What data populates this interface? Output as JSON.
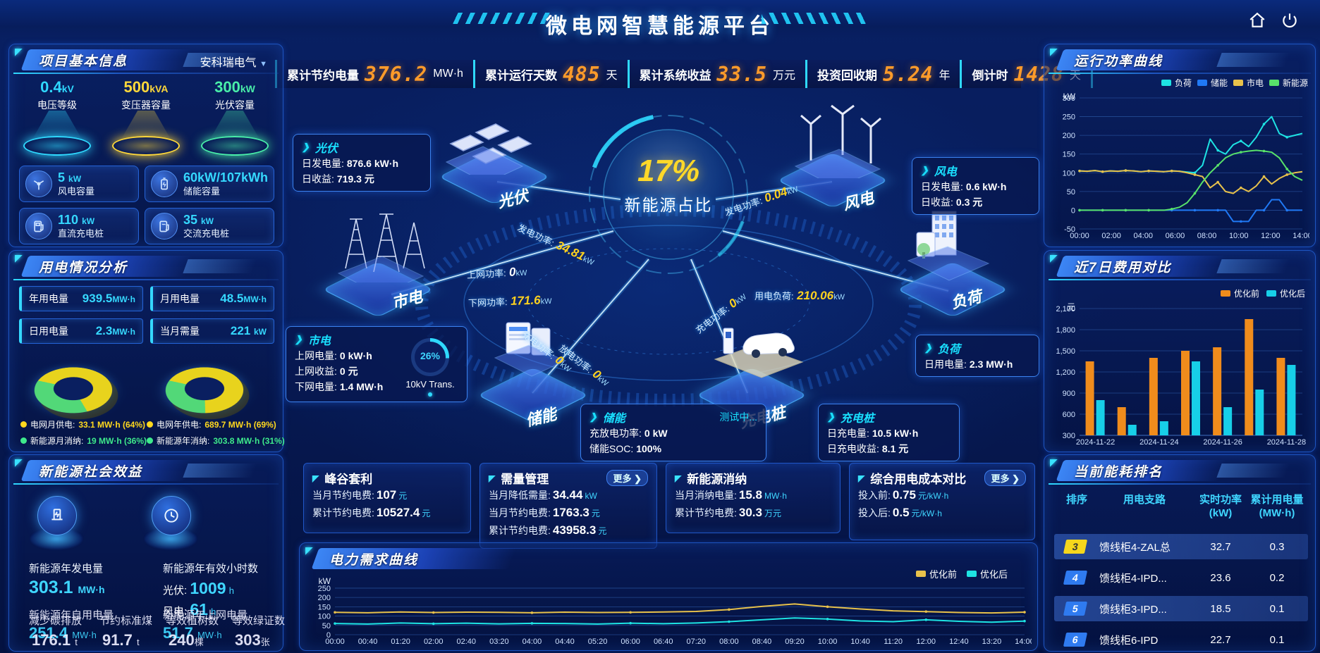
{
  "header": {
    "title": "微电网智慧能源平台"
  },
  "kpis": [
    {
      "label": "累计节约电量",
      "value": "376.2",
      "unit": "MW·h"
    },
    {
      "label": "累计运行天数",
      "value": "485",
      "unit": "天"
    },
    {
      "label": "累计系统收益",
      "value": "33.5",
      "unit": "万元"
    },
    {
      "label": "投资回收期",
      "value": "5.24",
      "unit": "年"
    },
    {
      "label": "倒计时",
      "value": "1428",
      "unit": "天"
    }
  ],
  "project": {
    "title": "项目基本信息",
    "company": "安科瑞电气",
    "cones": [
      {
        "value": "0.4",
        "unit": "kV",
        "label": "电压等级",
        "color": "#2fd9ff"
      },
      {
        "value": "500",
        "unit": "kVA",
        "label": "变压器容量",
        "color": "#ffd83a"
      },
      {
        "value": "300",
        "unit": "kW",
        "label": "光伏容量",
        "color": "#49eea9"
      }
    ],
    "cards": [
      {
        "value": "5",
        "unit": "kW",
        "label": "风电容量",
        "icon": "wind-turbine-icon"
      },
      {
        "value": "60kW/107kWh",
        "unit": "",
        "label": "储能容量",
        "icon": "battery-icon"
      },
      {
        "value": "110",
        "unit": "kW",
        "label": "直流充电桩",
        "icon": "dc-charger-icon"
      },
      {
        "value": "35",
        "unit": "kW",
        "label": "交流充电桩",
        "icon": "ac-charger-icon"
      }
    ]
  },
  "usage": {
    "title": "用电情况分析",
    "stats": [
      {
        "label": "年用电量",
        "value": "939.5",
        "unit": "MW·h"
      },
      {
        "label": "月用电量",
        "value": "48.5",
        "unit": "MW·h"
      },
      {
        "label": "日用电量",
        "value": "2.3",
        "unit": "MW·h"
      },
      {
        "label": "当月需量",
        "value": "221",
        "unit": "kW"
      }
    ],
    "month_legend": [
      {
        "label": "电网月供电:",
        "value": "33.1 MW·h (64%)",
        "color": "#ffd81e"
      },
      {
        "label": "新能源月消纳:",
        "value": "19 MW·h (36%)",
        "color": "#3ee98c"
      }
    ],
    "year_legend": [
      {
        "label": "电网年供电:",
        "value": "689.7 MW·h (69%)",
        "color": "#ffd81e"
      },
      {
        "label": "新能源年消纳:",
        "value": "303.8 MW·h (31%)",
        "color": "#3ee98c"
      }
    ]
  },
  "benefit": {
    "title": "新能源社会效益",
    "gen": {
      "label": "新能源年发电量",
      "value": "303.1",
      "unit": "MW·h"
    },
    "hours": {
      "label": "新能源年有效小时数",
      "sub": [
        {
          "k": "光伏:",
          "v": "1009",
          "u": "h"
        },
        {
          "k": "风电:",
          "v": "61",
          "u": "h"
        }
      ]
    },
    "overlap_a": [
      {
        "label": "新能源年自用电量",
        "value": "251.4",
        "unit": "MW·h"
      },
      {
        "label": "新能源年上网电量",
        "value": "51.7",
        "unit": "MW·h"
      }
    ],
    "overlap_b": [
      {
        "label": "减少碳排放",
        "value": "176.1",
        "unit": "t"
      },
      {
        "label": "节约标准煤",
        "value": "91.7",
        "unit": "t"
      },
      {
        "label": "等效植树数",
        "value": "240",
        "unit": "棵"
      },
      {
        "label": "等效绿证数",
        "value": "303",
        "unit": "张"
      }
    ]
  },
  "diagram": {
    "center": {
      "value": "17%",
      "label": "新能源占比"
    },
    "nodes": {
      "pv": "光伏",
      "grid": "市电",
      "wind": "风电",
      "load": "负荷",
      "storage": "储能",
      "charger": "充电桩"
    },
    "pv_box": {
      "title": "光伏",
      "rows": [
        {
          "k": "日发电量:",
          "v": "876.6 kW·h"
        },
        {
          "k": "日收益:",
          "v": "719.3 元"
        }
      ]
    },
    "wind_box": {
      "title": "风电",
      "rows": [
        {
          "k": "日发电量:",
          "v": "0.6 kW·h"
        },
        {
          "k": "日收益:",
          "v": "0.3 元"
        }
      ]
    },
    "grid_box": {
      "title": "市电",
      "rows": [
        {
          "k": "上网电量:",
          "v": "0 kW·h"
        },
        {
          "k": "上网收益:",
          "v": "0 元"
        },
        {
          "k": "下网电量:",
          "v": "1.4 MW·h"
        }
      ],
      "gauge_value": "26%",
      "gauge_label": "10kV Trans."
    },
    "storage_box": {
      "title": "储能",
      "status": "测试中...",
      "rows": [
        {
          "k": "充放电功率:",
          "v": "0 kW"
        },
        {
          "k": "储能SOC:",
          "v": "100%"
        }
      ]
    },
    "load_box": {
      "title": "负荷",
      "rows": [
        {
          "k": "日用电量:",
          "v": "2.3 MW·h"
        }
      ]
    },
    "charger_box": {
      "title": "充电桩",
      "rows": [
        {
          "k": "日充电量:",
          "v": "10.5 kW·h"
        },
        {
          "k": "日充电收益:",
          "v": "8.1 元"
        }
      ]
    },
    "flows": [
      {
        "label": "发电功率:",
        "value": "34.81",
        "unit": "kW"
      },
      {
        "label": "上网功率:",
        "value": "0",
        "unit": "kW"
      },
      {
        "label": "下网功率:",
        "value": "171.6",
        "unit": "kW"
      },
      {
        "label": "发电功率:",
        "value": "0.04",
        "unit": "kW"
      },
      {
        "label": "用电负荷:",
        "value": "210.06",
        "unit": "kW"
      },
      {
        "label": "充电功率:",
        "value": "0",
        "unit": "kW"
      },
      {
        "label": "放电功率:",
        "value": "0",
        "unit": "kW"
      },
      {
        "label": "充电功率:",
        "value": "0",
        "unit": "kW"
      }
    ]
  },
  "bottom_cards": {
    "arbitrage": {
      "title": "峰谷套利",
      "rows": [
        {
          "k": "当月节约电费:",
          "v": "107",
          "u": "元"
        },
        {
          "k": "累计节约电费:",
          "v": "10527.4",
          "u": "元"
        }
      ]
    },
    "demand": {
      "title": "需量管理",
      "more": "更多 ❯",
      "rows": [
        {
          "k": "当月降低需量:",
          "v": "34.44",
          "u": "kW"
        },
        {
          "k": "当月节约电费:",
          "v": "1763.3",
          "u": "元"
        },
        {
          "k": "累计节约电费:",
          "v": "43958.3",
          "u": "元"
        }
      ]
    },
    "consumption": {
      "title": "新能源消纳",
      "rows": [
        {
          "k": "当月消纳电量:",
          "v": "15.8",
          "u": "MW·h"
        },
        {
          "k": "累计节约电费:",
          "v": "30.3",
          "u": "万元"
        }
      ]
    },
    "cost": {
      "title": "综合用电成本对比",
      "more": "更多 ❯",
      "rows": [
        {
          "k": "投入前:",
          "v": "0.75",
          "u": "元/kW·h"
        },
        {
          "k": "投入后:",
          "v": "0.5",
          "u": "元/kW·h"
        }
      ]
    }
  },
  "panels": {
    "demand_curve": "电力需求曲线",
    "power_curve": "运行功率曲线",
    "cost7": "近7日费用对比"
  },
  "ranking": {
    "title": "当前能耗排名",
    "headers": [
      {
        "l1": "排序",
        "l2": ""
      },
      {
        "l1": "用电支路",
        "l2": ""
      },
      {
        "l1": "实时功率",
        "l2": "(kW)"
      },
      {
        "l1": "累计用电量",
        "l2": "(MW·h)"
      }
    ],
    "rows": [
      {
        "rank": "3",
        "name": "馈线柜4-ZAL总",
        "power": "32.7",
        "energy": "0.3"
      },
      {
        "rank": "4",
        "name": "馈线柜4-IPD...",
        "power": "23.6",
        "energy": "0.2"
      },
      {
        "rank": "5",
        "name": "馈线柜3-IPD...",
        "power": "18.5",
        "energy": "0.1"
      },
      {
        "rank": "6",
        "name": "馈线柜6-IPD",
        "power": "22.7",
        "energy": "0.1"
      }
    ]
  },
  "chart_data": [
    {
      "el": "rp-chart",
      "type": "line",
      "title": "运行功率曲线",
      "ylabel": "kW",
      "ylim": [
        -50,
        300
      ],
      "yticks": [
        -50,
        0,
        50,
        100,
        150,
        200,
        250,
        300
      ],
      "xticks": [
        "00:00",
        "02:00",
        "04:00",
        "06:00",
        "08:00",
        "10:00",
        "12:00",
        "14:00"
      ],
      "series": [
        {
          "name": "负荷",
          "color": "#1ee3e3",
          "values": [
            105,
            104,
            106,
            103,
            105,
            104,
            106,
            105,
            103,
            105,
            104,
            103,
            105,
            104,
            102,
            100,
            120,
            190,
            160,
            150,
            175,
            185,
            170,
            195,
            230,
            250,
            205,
            195,
            200,
            205
          ]
        },
        {
          "name": "储能",
          "color": "#2079f5",
          "values": [
            0,
            0,
            0,
            0,
            0,
            0,
            0,
            0,
            0,
            0,
            0,
            0,
            0,
            0,
            0,
            0,
            0,
            0,
            0,
            0,
            -30,
            -30,
            -30,
            0,
            0,
            28,
            28,
            0,
            0,
            0
          ]
        },
        {
          "name": "市电",
          "color": "#e7c14b",
          "values": [
            105,
            104,
            106,
            103,
            105,
            104,
            106,
            105,
            103,
            105,
            104,
            103,
            105,
            104,
            100,
            95,
            90,
            60,
            75,
            50,
            45,
            60,
            50,
            65,
            90,
            70,
            85,
            95,
            100,
            103
          ]
        },
        {
          "name": "新能源",
          "color": "#58e26a",
          "values": [
            0,
            0,
            0,
            0,
            0,
            0,
            0,
            0,
            0,
            0,
            0,
            0,
            3,
            8,
            20,
            45,
            75,
            100,
            120,
            140,
            150,
            155,
            158,
            160,
            158,
            155,
            140,
            110,
            90,
            80
          ]
        }
      ]
    },
    {
      "el": "c7-chart",
      "type": "bar",
      "title": "近7日费用对比",
      "ylabel": "元",
      "ylim": [
        300,
        2100
      ],
      "yticks": [
        300,
        600,
        900,
        1200,
        1500,
        1800,
        2100
      ],
      "categories": [
        "2024-11-22",
        "2024-11-23",
        "2024-11-24",
        "2024-11-25",
        "2024-11-26",
        "2024-11-27",
        "2024-11-28"
      ],
      "xticks_shown": [
        "2024-11-22",
        "2024-11-24",
        "2024-11-26",
        "2024-11-28"
      ],
      "series": [
        {
          "name": "优化前",
          "color": "#f08c1c",
          "values": [
            1350,
            700,
            1400,
            1500,
            1550,
            1950,
            1400
          ]
        },
        {
          "name": "优化后",
          "color": "#17cfe8",
          "values": [
            800,
            450,
            500,
            1350,
            700,
            950,
            1300
          ]
        }
      ]
    },
    {
      "el": "dm-chart",
      "type": "line",
      "title": "电力需求曲线",
      "ylabel": "kW",
      "ylim": [
        0,
        280
      ],
      "yticks": [
        0,
        50,
        100,
        150,
        200,
        250
      ],
      "xticks": [
        "00:00",
        "00:40",
        "01:20",
        "02:00",
        "02:40",
        "03:20",
        "04:00",
        "04:40",
        "05:20",
        "06:00",
        "06:40",
        "07:20",
        "08:00",
        "08:40",
        "09:20",
        "10:00",
        "10:40",
        "11:20",
        "12:00",
        "12:40",
        "13:20",
        "14:00"
      ],
      "series": [
        {
          "name": "优化前",
          "color": "#e7c14b",
          "values": [
            120,
            118,
            122,
            119,
            121,
            120,
            118,
            121,
            119,
            120,
            122,
            125,
            135,
            152,
            165,
            150,
            138,
            128,
            124,
            119,
            117,
            121
          ]
        },
        {
          "name": "优化后",
          "color": "#1ee3e3",
          "values": [
            60,
            57,
            63,
            59,
            62,
            58,
            61,
            60,
            57,
            62,
            59,
            63,
            70,
            80,
            90,
            84,
            74,
            70,
            80,
            72,
            67,
            73
          ]
        }
      ]
    },
    {
      "el": "donut-month",
      "type": "pie",
      "labels": [
        "电网月供电",
        "新能源月消纳"
      ],
      "values": [
        64,
        36
      ],
      "colors": [
        "#e8d31d",
        "#52d878"
      ]
    },
    {
      "el": "donut-year",
      "type": "pie",
      "labels": [
        "电网年供电",
        "新能源年消纳"
      ],
      "values": [
        69,
        31
      ],
      "colors": [
        "#e8d31d",
        "#52d878"
      ]
    }
  ]
}
